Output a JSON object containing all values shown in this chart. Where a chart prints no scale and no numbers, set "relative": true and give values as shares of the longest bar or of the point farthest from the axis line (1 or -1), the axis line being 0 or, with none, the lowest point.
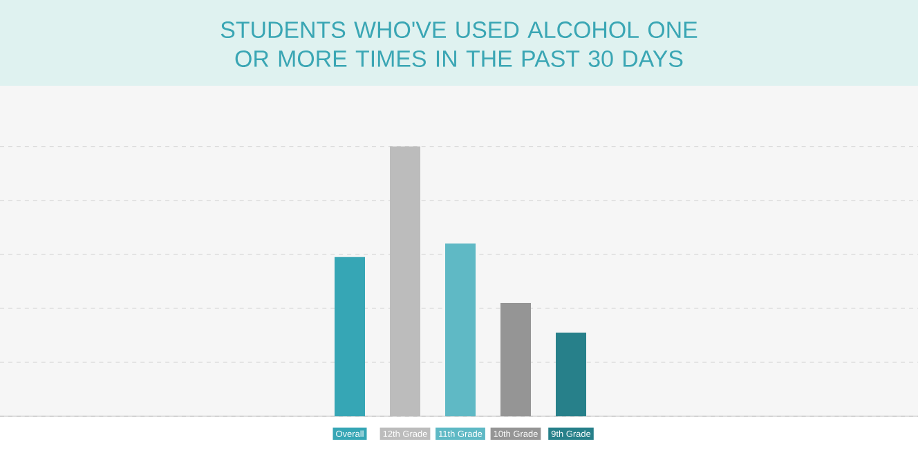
{
  "chart_data": {
    "type": "bar",
    "title": "STUDENTS WHO'VE USED ALCOHOL ONE OR MORE TIMES IN THE PAST 30 DAYS",
    "categories": [
      "Overall",
      "12th Grade",
      "11th Grade",
      "10th Grade",
      "9th Grade"
    ],
    "values": [
      0.59,
      1,
      0.64,
      0.42,
      0.31
    ],
    "colors": [
      "#36a6b5",
      "#bcbcbc",
      "#5fb9c5",
      "#959595",
      "#27808a"
    ],
    "relative": true,
    "grid": "y"
  }
}
